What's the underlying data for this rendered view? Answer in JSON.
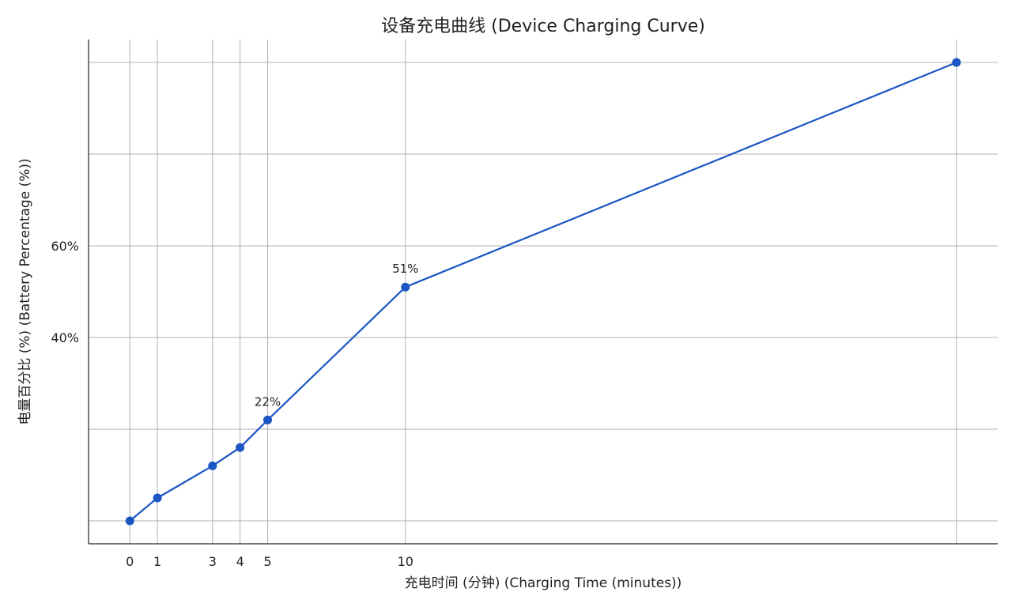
{
  "chart_data": {
    "type": "line",
    "title": "设备充电曲线 (Device Charging Curve)",
    "xlabel": "充电时间 (分钟) (Charging Time (minutes))",
    "ylabel": "电量百分比 (%) (Battery Percentage (%))",
    "x_ticks": [
      0,
      1,
      3,
      4,
      5,
      10
    ],
    "y_ticks": [
      {
        "value": 60,
        "label": "60%"
      },
      {
        "value": 40,
        "label": "40%"
      }
    ],
    "y_grid": [
      0,
      20,
      40,
      60,
      80,
      100
    ],
    "xlim": [
      -1.5,
      31.5
    ],
    "ylim": [
      -5,
      105
    ],
    "grid": true,
    "series": [
      {
        "name": "",
        "color": "#1a56c4",
        "x": [
          0,
          1,
          3,
          4,
          5,
          10,
          30
        ],
        "y": [
          0,
          5,
          12,
          16,
          22,
          51,
          100
        ]
      }
    ],
    "annotations": [
      {
        "x": 5,
        "y": 22,
        "text": "22%"
      },
      {
        "x": 10,
        "y": 51,
        "text": "51%"
      }
    ]
  }
}
